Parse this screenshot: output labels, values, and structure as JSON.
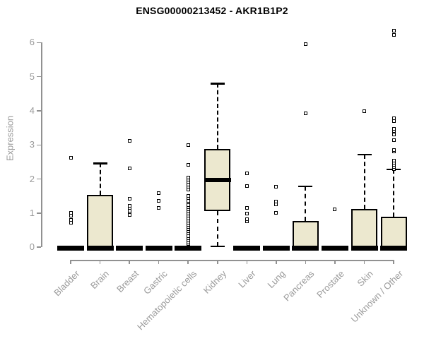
{
  "title": "ENSG00000213452 - AKR1B1P2",
  "chart_data": {
    "type": "boxplot",
    "title": "ENSG00000213452 - AKR1B1P2",
    "xlabel": "",
    "ylabel": "Expression",
    "ylim": [
      0,
      6.5
    ],
    "yticks": [
      0,
      1,
      2,
      3,
      4,
      5,
      6
    ],
    "grid": false,
    "legend": null,
    "box_fill": "#ece8cf",
    "box_border": "#000000",
    "axis_color": "#919191",
    "label_color": "#9a9a9a",
    "categories": [
      "Bladder",
      "Brain",
      "Breast",
      "Gastric",
      "Hematopoietic cells",
      "Kidney",
      "Liver",
      "Lung",
      "Pancreas",
      "Prostate",
      "Skin",
      "Unknown / Other"
    ],
    "series": [
      {
        "category": "Bladder",
        "q1": 0,
        "median": 0,
        "q3": 0,
        "whisker_low": 0,
        "whisker_high": 0,
        "outliers": [
          0.72,
          0.8,
          0.93,
          1.0,
          2.63
        ]
      },
      {
        "category": "Brain",
        "q1": 0,
        "median": 0,
        "q3": 1.53,
        "whisker_low": 0,
        "whisker_high": 2.46,
        "outliers": []
      },
      {
        "category": "Breast",
        "q1": 0,
        "median": 0,
        "q3": 0,
        "whisker_low": 0,
        "whisker_high": 0,
        "outliers": [
          0.95,
          1.02,
          1.08,
          1.15,
          1.22,
          1.42,
          2.32,
          3.13
        ]
      },
      {
        "category": "Gastric",
        "q1": 0,
        "median": 0,
        "q3": 0,
        "whisker_low": 0,
        "whisker_high": 0,
        "outliers": [
          1.16,
          1.35,
          1.59
        ]
      },
      {
        "category": "Hematopoietic cells",
        "q1": 0,
        "median": 0,
        "q3": 0,
        "whisker_low": 0,
        "whisker_high": 0,
        "outliers": [
          0.1,
          0.14,
          0.2,
          0.27,
          0.33,
          0.4,
          0.46,
          0.53,
          0.59,
          0.66,
          0.72,
          0.79,
          0.85,
          0.92,
          0.98,
          1.05,
          1.11,
          1.18,
          1.24,
          1.31,
          1.37,
          1.44,
          1.5,
          1.7,
          1.77,
          1.84,
          1.91,
          1.98,
          2.05,
          2.42,
          3.0
        ]
      },
      {
        "category": "Kidney",
        "q1": 1.07,
        "median": 1.97,
        "q3": 2.88,
        "whisker_low": 0.03,
        "whisker_high": 4.8,
        "outliers": []
      },
      {
        "category": "Liver",
        "q1": 0,
        "median": 0,
        "q3": 0,
        "whisker_low": 0,
        "whisker_high": 0,
        "outliers": [
          0.76,
          0.82,
          0.99,
          1.16,
          1.8,
          2.17
        ]
      },
      {
        "category": "Lung",
        "q1": 0,
        "median": 0,
        "q3": 0,
        "whisker_low": 0,
        "whisker_high": 0,
        "outliers": [
          1.01,
          1.25,
          1.33,
          1.78
        ]
      },
      {
        "category": "Pancreas",
        "q1": 0,
        "median": 0,
        "q3": 0.78,
        "whisker_low": 0,
        "whisker_high": 1.78,
        "outliers": [
          3.93,
          5.96
        ]
      },
      {
        "category": "Prostate",
        "q1": 0,
        "median": 0,
        "q3": 0,
        "whisker_low": 0,
        "whisker_high": 0,
        "outliers": [
          1.12
        ]
      },
      {
        "category": "Skin",
        "q1": 0,
        "median": 0,
        "q3": 1.12,
        "whisker_low": 0,
        "whisker_high": 2.72,
        "outliers": [
          3.98
        ]
      },
      {
        "category": "Unknown / Other",
        "q1": 0,
        "median": 0,
        "q3": 0.9,
        "whisker_low": 0,
        "whisker_high": 2.28,
        "outliers": [
          2.3,
          2.35,
          2.42,
          2.48,
          2.55,
          2.8,
          2.86,
          3.15,
          3.3,
          3.4,
          3.48,
          3.7,
          3.78,
          6.22,
          6.35
        ]
      }
    ]
  }
}
